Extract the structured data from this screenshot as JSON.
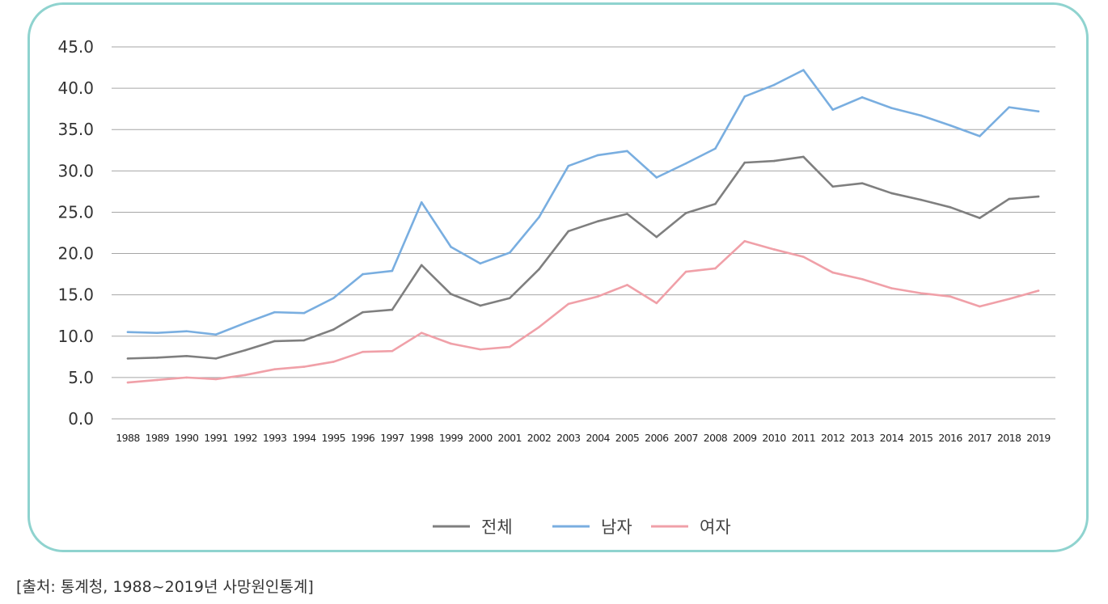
{
  "chart_data": {
    "type": "line",
    "title": "",
    "xlabel": "",
    "ylabel": "",
    "ylim": [
      0,
      45
    ],
    "y_ticks": [
      "0.0",
      "5.0",
      "10.0",
      "15.0",
      "20.0",
      "25.0",
      "30.0",
      "35.0",
      "40.0",
      "45.0"
    ],
    "grid": true,
    "legend_position": "bottom",
    "categories": [
      "1988",
      "1989",
      "1990",
      "1991",
      "1992",
      "1993",
      "1994",
      "1995",
      "1996",
      "1997",
      "1998",
      "1999",
      "2000",
      "2001",
      "2002",
      "2003",
      "2004",
      "2005",
      "2006",
      "2007",
      "2008",
      "2009",
      "2010",
      "2011",
      "2012",
      "2013",
      "2014",
      "2015",
      "2016",
      "2017",
      "2018",
      "2019"
    ],
    "series": [
      {
        "name": "전체",
        "color": "#7f7f7f",
        "values": [
          7.3,
          7.4,
          7.6,
          7.3,
          8.3,
          9.4,
          9.5,
          10.8,
          12.9,
          13.2,
          18.6,
          15.1,
          13.7,
          14.6,
          18.1,
          22.7,
          23.9,
          24.8,
          22.0,
          24.9,
          26.0,
          31.0,
          31.2,
          31.7,
          28.1,
          28.5,
          27.3,
          26.5,
          25.6,
          24.3,
          26.6,
          26.9
        ]
      },
      {
        "name": "남자",
        "color": "#79aee0",
        "values": [
          10.5,
          10.4,
          10.6,
          10.2,
          11.6,
          12.9,
          12.8,
          14.6,
          17.5,
          17.9,
          26.2,
          20.8,
          18.8,
          20.1,
          24.4,
          30.6,
          31.9,
          32.4,
          29.2,
          30.9,
          32.7,
          39.0,
          40.4,
          42.2,
          37.4,
          38.9,
          37.6,
          36.7,
          35.5,
          34.2,
          37.7,
          37.2
        ]
      },
      {
        "name": "여자",
        "color": "#f0a0a8",
        "values": [
          4.4,
          4.7,
          5.0,
          4.8,
          5.3,
          6.0,
          6.3,
          6.9,
          8.1,
          8.2,
          10.4,
          9.1,
          8.4,
          8.7,
          11.1,
          13.9,
          14.8,
          16.2,
          14.0,
          17.8,
          18.2,
          21.5,
          20.5,
          19.6,
          17.7,
          16.9,
          15.8,
          15.2,
          14.8,
          13.6,
          14.5,
          15.5
        ]
      }
    ]
  },
  "source_note": "[출처: 통계청, 1988~2019년 사망원인통계]"
}
